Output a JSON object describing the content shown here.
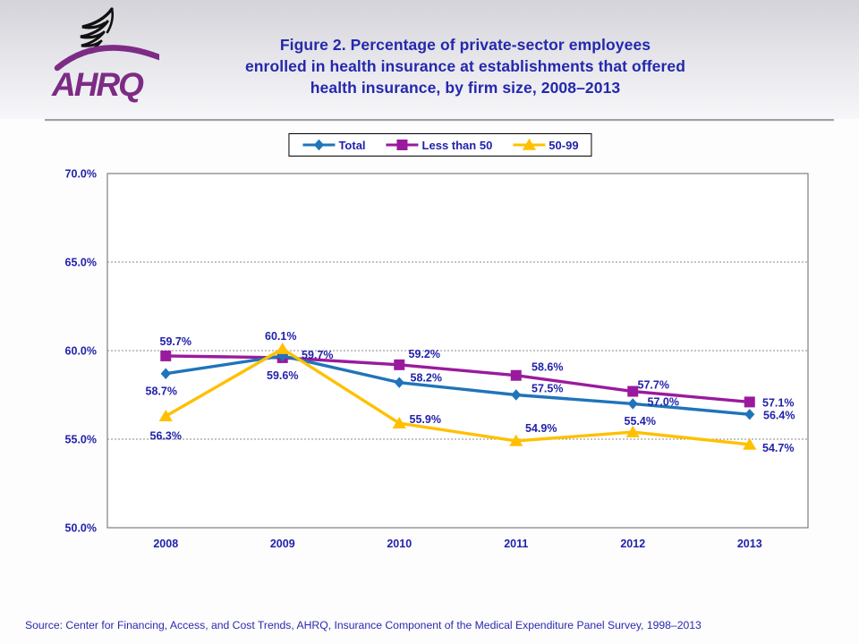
{
  "header": {
    "logo_text": "AHRQ",
    "title_lines": [
      "Figure 2. Percentage of private-sector employees",
      "enrolled in health insurance at establishments that offered",
      "health insurance, by firm size, 2008–2013"
    ]
  },
  "colors": {
    "navy_text": "#2222AA",
    "logo_purple": "#7D2B85",
    "total_blue": "#1F74BA",
    "less_than_50_purple": "#9A1A9E",
    "fifty_99_gold": "#FFC000"
  },
  "chart_data": {
    "type": "line",
    "title": "Percentage of private-sector employees enrolled in health insurance at establishments that offered health insurance, by firm size, 2008–2013",
    "categories": [
      "2008",
      "2009",
      "2010",
      "2011",
      "2012",
      "2013"
    ],
    "series": [
      {
        "name": "Total",
        "marker": "diamond",
        "color": "#1F74BA",
        "values": [
          58.7,
          59.7,
          58.2,
          57.5,
          57.0,
          56.4
        ]
      },
      {
        "name": "Less than 50",
        "marker": "square",
        "color": "#9A1A9E",
        "values": [
          59.7,
          59.6,
          59.2,
          58.6,
          57.7,
          57.1
        ]
      },
      {
        "name": "50-99",
        "marker": "triangle",
        "color": "#FFC000",
        "values": [
          56.3,
          60.1,
          55.9,
          54.9,
          55.4,
          54.7
        ]
      }
    ],
    "xlabel": "",
    "ylabel": "",
    "ylim": [
      50,
      70
    ],
    "ytick_step": 5,
    "ytick_suffix": "%",
    "data_label_suffix": "%",
    "grid": true,
    "legend_position": "top"
  },
  "footer": {
    "source": "Source: Center for Financing, Access, and Cost Trends, AHRQ, Insurance Component of the Medical Expenditure Panel Survey, 1998–2013"
  }
}
